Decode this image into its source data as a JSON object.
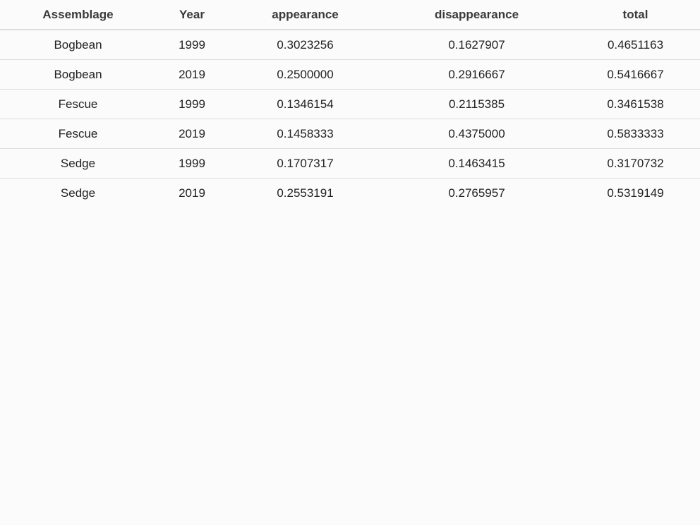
{
  "table": {
    "columns": [
      "Assemblage",
      "Year",
      "appearance",
      "disappearance",
      "total"
    ],
    "rows": [
      [
        "Bogbean",
        "1999",
        "0.3023256",
        "0.1627907",
        "0.4651163"
      ],
      [
        "Bogbean",
        "2019",
        "0.2500000",
        "0.2916667",
        "0.5416667"
      ],
      [
        "Fescue",
        "1999",
        "0.1346154",
        "0.2115385",
        "0.3461538"
      ],
      [
        "Fescue",
        "2019",
        "0.1458333",
        "0.4375000",
        "0.5833333"
      ],
      [
        "Sedge",
        "1999",
        "0.1707317",
        "0.1463415",
        "0.3170732"
      ],
      [
        "Sedge",
        "2019",
        "0.2553191",
        "0.2765957",
        "0.5319149"
      ]
    ]
  },
  "colors": {
    "background": "#fbfbfb",
    "header_text": "#3a3a3a",
    "cell_text": "#222222",
    "row_border": "#dddddd"
  }
}
